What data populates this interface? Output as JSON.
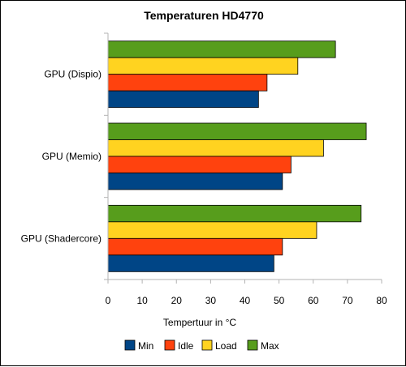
{
  "chart_data": {
    "type": "bar",
    "orientation": "horizontal",
    "title": "Temperaturen HD4770",
    "xlabel": "Tempertuur in °C",
    "ylabel": "",
    "categories": [
      "GPU (Dispio)",
      "GPU (Memio)",
      "GPU (Shadercore)"
    ],
    "xlim": [
      0,
      80
    ],
    "xticks": [
      0,
      10,
      20,
      30,
      40,
      50,
      60,
      70,
      80
    ],
    "grid": false,
    "legend_position": "bottom",
    "series": [
      {
        "name": "Min",
        "color": "#004586",
        "values": [
          44,
          51,
          48.5
        ]
      },
      {
        "name": "Idle",
        "color": "#ff420e",
        "values": [
          46.5,
          53.5,
          51
        ]
      },
      {
        "name": "Load",
        "color": "#ffd320",
        "values": [
          55.5,
          63,
          61
        ]
      },
      {
        "name": "Max",
        "color": "#579d1c",
        "values": [
          66.5,
          75.5,
          74
        ]
      }
    ]
  }
}
